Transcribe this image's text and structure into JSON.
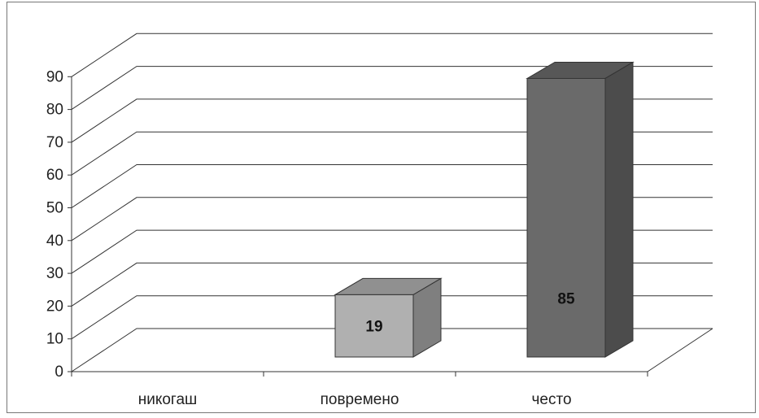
{
  "chart_data": {
    "type": "bar",
    "categories": [
      "никогаш",
      "повремено",
      "често"
    ],
    "values": [
      0,
      19,
      85
    ],
    "data_labels": [
      "",
      "19",
      "85"
    ],
    "ylim": [
      0,
      90
    ],
    "yticks": [
      "0",
      "10",
      "20",
      "30",
      "40",
      "50",
      "60",
      "70",
      "80",
      "90"
    ],
    "grid": true,
    "legend": "none",
    "colors": {
      "повремено": "#b0b0b0",
      "често": "#6a6a6a"
    }
  }
}
